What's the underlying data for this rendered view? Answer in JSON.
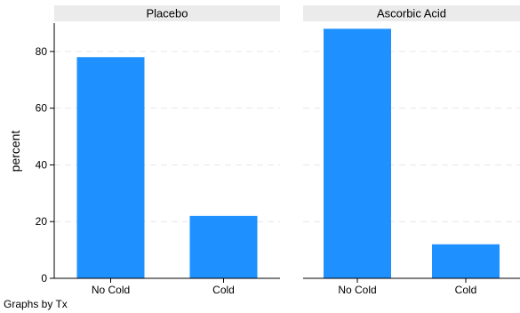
{
  "chart_data": {
    "type": "bar",
    "ylabel": "percent",
    "ylim": [
      0,
      90
    ],
    "yticks": [
      0,
      20,
      40,
      60,
      80
    ],
    "grid": true,
    "note": "Graphs by Tx",
    "colors": {
      "bar": "#1e90ff",
      "panel_header": "#ebebeb",
      "grid": "#e6e6e6"
    },
    "panels": [
      {
        "title": "Placebo",
        "categories": [
          "No Cold",
          "Cold"
        ],
        "values": [
          78,
          22
        ]
      },
      {
        "title": "Ascorbic Acid",
        "categories": [
          "No Cold",
          "Cold"
        ],
        "values": [
          88,
          12
        ]
      }
    ]
  }
}
